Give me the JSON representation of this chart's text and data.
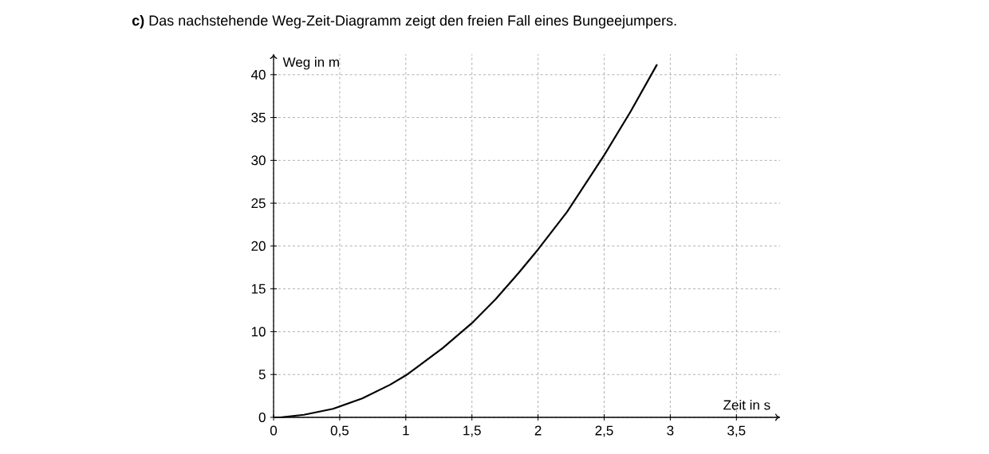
{
  "chart_data": {
    "type": "line",
    "title": "**c)** Das nachstehende Weg-Zeit-Diagramm zeigt den freien Fall eines Bungeejumpers.",
    "xlabel": "Zeit in s",
    "ylabel": "Weg in m",
    "x": [
      0,
      0.05,
      0.23,
      0.45,
      0.67,
      0.88,
      1.0,
      1.08,
      1.28,
      1.5,
      1.68,
      1.85,
      2.0,
      2.22,
      2.5,
      2.7,
      2.9
    ],
    "series": [
      {
        "color": "#000000",
        "values": [
          0,
          0,
          0.3,
          1.0,
          2.2,
          3.8,
          4.9,
          5.8,
          8.1,
          11.0,
          13.8,
          16.8,
          19.6,
          24.0,
          30.6,
          35.7,
          41.2
        ]
      }
    ],
    "xlim": [
      0,
      3.83
    ],
    "ylim": [
      0,
      42.4
    ],
    "xticks": [
      0,
      {
        "value": 0.5,
        "label": "0,5"
      },
      1,
      {
        "value": 1.5,
        "label": "1,5"
      },
      2,
      {
        "value": 2.5,
        "label": "2,5"
      },
      3,
      {
        "value": 3.5,
        "label": "3,5"
      }
    ],
    "yticks": [
      0,
      5,
      10,
      15,
      20,
      25,
      30,
      35,
      40
    ],
    "grid": true,
    "line_style": "solid",
    "marker": "none"
  }
}
